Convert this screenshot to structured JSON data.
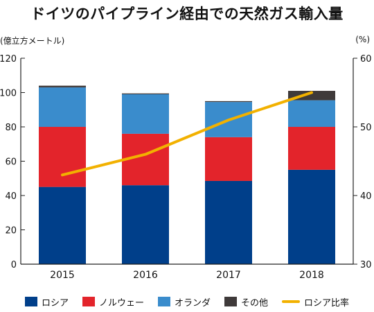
{
  "title": "ドイツのパイプライン経由での天然ガス輸入量",
  "left_unit": "(億立方メートル)",
  "right_unit": "(%)",
  "colors": {
    "russia": "#003f8a",
    "norway": "#e3242b",
    "netherlands": "#3a8ccc",
    "other": "#3f3a3a",
    "share_line": "#f2b100",
    "axis": "#222222"
  },
  "chart_data": {
    "type": "bar",
    "stacked": true,
    "categories": [
      "2015",
      "2016",
      "2017",
      "2018"
    ],
    "ylim": [
      0,
      120
    ],
    "yticks": [
      "0",
      "20",
      "40",
      "60",
      "80",
      "100",
      "120"
    ],
    "y2lim": [
      30,
      60
    ],
    "y2ticks": [
      "30",
      "40",
      "50",
      "60"
    ],
    "series": [
      {
        "name": "ロシア",
        "key": "russia",
        "values": [
          45,
          46,
          48.5,
          55
        ]
      },
      {
        "name": "ノルウェー",
        "key": "norway",
        "values": [
          35,
          30,
          25.5,
          25
        ]
      },
      {
        "name": "オランダ",
        "key": "netherlands",
        "values": [
          23,
          23,
          20.5,
          15.5
        ]
      },
      {
        "name": "その他",
        "key": "other",
        "values": [
          1,
          0.5,
          0.5,
          5.5
        ]
      }
    ],
    "line_series": {
      "name": "ロシア比率",
      "axis": "right",
      "values": [
        43,
        46,
        51,
        55
      ]
    }
  }
}
